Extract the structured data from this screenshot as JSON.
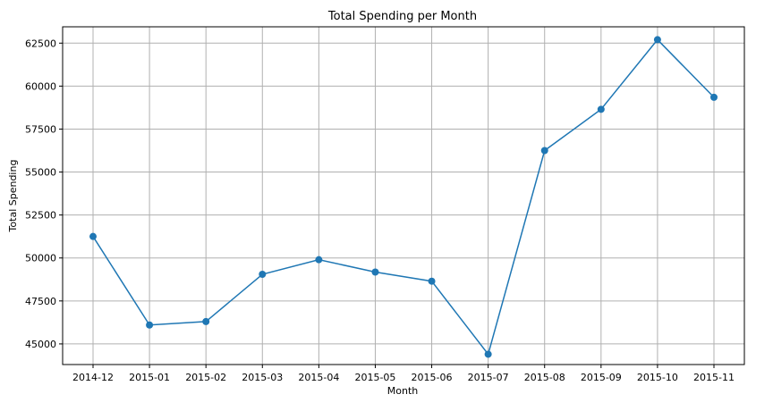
{
  "chart_data": {
    "type": "line",
    "title": "Total Spending per Month",
    "xlabel": "Month",
    "ylabel": "Total Spending",
    "categories": [
      "2014-12",
      "2015-01",
      "2015-02",
      "2015-03",
      "2015-04",
      "2015-05",
      "2015-06",
      "2015-07",
      "2015-08",
      "2015-09",
      "2015-10",
      "2015-11"
    ],
    "series": [
      {
        "values": [
          51250,
          46100,
          46300,
          49050,
          49900,
          49180,
          48650,
          44400,
          56250,
          58650,
          62700,
          59350
        ],
        "color": "#1f77b4",
        "marker": "circle"
      }
    ],
    "yticks": [
      45000,
      47500,
      50000,
      52500,
      55000,
      57500,
      60000,
      62500
    ],
    "ytick_labels": [
      "45000",
      "47500",
      "50000",
      "52500",
      "55000",
      "57500",
      "60000",
      "62500"
    ],
    "ylim": [
      43800,
      63450
    ],
    "grid": true
  }
}
